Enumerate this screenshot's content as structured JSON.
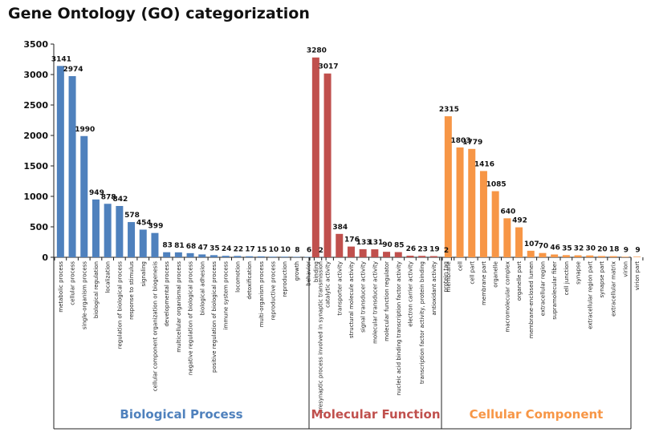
{
  "chart_data": {
    "type": "bar",
    "title": "Gene Ontology (GO) categorization",
    "xlabel": "",
    "ylabel": "",
    "ylim": [
      0,
      3500
    ],
    "yticks": [
      0,
      500,
      1000,
      1500,
      2000,
      2500,
      3000,
      3500
    ],
    "grid": false,
    "legend": "none",
    "groups": [
      {
        "name": "Biological Process",
        "color": "#4f81bd",
        "label_color": "#4f81bd",
        "categories": [
          "metabolic process",
          "cellular process",
          "single-organism process",
          "biological regulation",
          "localization",
          "regulation of biological process",
          "response to stimulus",
          "signaling",
          "cellular component organization or biogenesis",
          "developmental process",
          "multicellular organismal process",
          "negative regulation of biological process",
          "biological adhesion",
          "positive regulation of biological process",
          "immune system process",
          "locomotion",
          "detoxification",
          "multi-organism process",
          "reproductive process",
          "reproduction",
          "growth",
          "behavior",
          "presynaptic process involved in synaptic transmission"
        ],
        "values": [
          3141,
          2974,
          1990,
          949,
          878,
          842,
          578,
          454,
          399,
          83,
          81,
          68,
          47,
          35,
          24,
          22,
          17,
          15,
          10,
          10,
          8,
          6,
          2
        ]
      },
      {
        "name": "Molecular Function",
        "color": "#c0504d",
        "label_color": "#c0504d",
        "categories": [
          "binding",
          "catalytic activity",
          "transporter activity",
          "structural molecule activity",
          "signal transducer activity",
          "molecular transducer activity",
          "molecular function regulator",
          "nucleic acid binding transcription factor activity",
          "electron carrier activity",
          "transcription factor activity, protein binding",
          "antioxidant activity",
          "protein tag"
        ],
        "values": [
          3280,
          3017,
          384,
          176,
          133,
          131,
          90,
          85,
          26,
          23,
          19,
          2
        ]
      },
      {
        "name": "Cellular Component",
        "color": "#f79646",
        "label_color": "#f79646",
        "categories": [
          "membrane",
          "cell",
          "cell part",
          "membrane part",
          "organelle",
          "macromolecular complex",
          "organelle part",
          "membrane-enclosed lumen",
          "extracellular region",
          "supramolecular fiber",
          "cell junction",
          "synapse",
          "extracellular region part",
          "synapse part",
          "extracellular matrix",
          "virion",
          "virion part"
        ],
        "values": [
          2315,
          1803,
          1779,
          1416,
          1085,
          640,
          492,
          107,
          70,
          46,
          35,
          32,
          30,
          20,
          18,
          9,
          9
        ]
      }
    ]
  }
}
